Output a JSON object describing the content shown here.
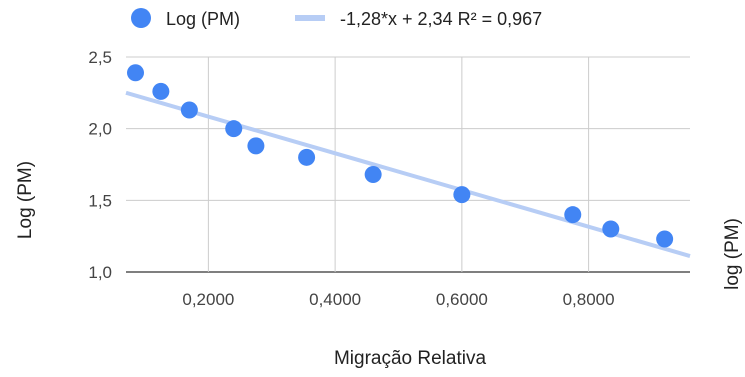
{
  "chart_data": {
    "type": "scatter",
    "title": "",
    "xlabel": "Migração Relativa",
    "ylabel": "Log (PM)",
    "ylabel_right": "log (PM)",
    "xlim": [
      0.07,
      0.96
    ],
    "ylim": [
      1.0,
      2.5
    ],
    "x_ticks": [
      0.2,
      0.4,
      0.6,
      0.8
    ],
    "x_tick_labels": [
      "0,2000",
      "0,4000",
      "0,6000",
      "0,8000"
    ],
    "y_ticks": [
      1.0,
      1.5,
      2.0,
      2.5
    ],
    "y_tick_labels": [
      "1,0",
      "1,5",
      "2,0",
      "2,5"
    ],
    "grid": true,
    "legend_position": "top",
    "series": [
      {
        "name": "Log (PM)",
        "color": "#4285f4",
        "points": [
          {
            "x": 0.085,
            "y": 2.39
          },
          {
            "x": 0.125,
            "y": 2.26
          },
          {
            "x": 0.17,
            "y": 2.13
          },
          {
            "x": 0.24,
            "y": 2.0
          },
          {
            "x": 0.275,
            "y": 1.88
          },
          {
            "x": 0.355,
            "y": 1.8
          },
          {
            "x": 0.46,
            "y": 1.68
          },
          {
            "x": 0.6,
            "y": 1.54
          },
          {
            "x": 0.775,
            "y": 1.4
          },
          {
            "x": 0.835,
            "y": 1.3
          },
          {
            "x": 0.92,
            "y": 1.23
          }
        ]
      }
    ],
    "trendline": {
      "label": "-1,28*x + 2,34 R² = 0,967",
      "slope": -1.28,
      "intercept": 2.34,
      "r2": 0.967,
      "color": "#b7cdf5"
    }
  }
}
